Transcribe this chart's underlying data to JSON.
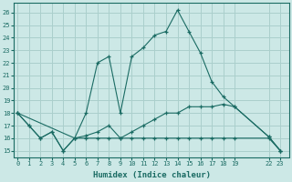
{
  "xlabel": "Humidex (Indice chaleur)",
  "bg_color": "#cce8e6",
  "grid_color": "#aacfcc",
  "line_color": "#1a6b63",
  "series": [
    {
      "x": [
        0,
        5,
        6,
        7,
        8,
        9,
        10,
        11,
        12,
        13,
        14,
        15,
        16,
        17,
        18,
        19,
        22,
        23
      ],
      "y": [
        18,
        16,
        18,
        22,
        22.5,
        18,
        22.5,
        23.2,
        24.2,
        24.5,
        26.2,
        24.5,
        22.8,
        20.5,
        19.3,
        18.5,
        16.1,
        15
      ]
    },
    {
      "x": [
        0,
        1,
        2,
        3,
        4,
        5,
        6,
        7,
        8,
        9,
        10,
        11,
        12,
        13,
        14,
        15,
        16,
        17,
        18,
        19,
        22,
        23
      ],
      "y": [
        18,
        17,
        16,
        16.5,
        15,
        16,
        16.2,
        16.5,
        17.0,
        16,
        16.5,
        17.0,
        17.5,
        18.0,
        18.0,
        18.5,
        18.5,
        18.5,
        18.7,
        18.5,
        16.1,
        15
      ]
    },
    {
      "x": [
        0,
        1,
        2,
        3,
        4,
        5,
        6,
        7,
        8,
        9,
        10,
        11,
        12,
        13,
        14,
        15,
        16,
        17,
        18,
        19,
        22,
        23
      ],
      "y": [
        18,
        17,
        16,
        16.5,
        15,
        16,
        16,
        16,
        16,
        16,
        16,
        16,
        16,
        16,
        16,
        16,
        16,
        16,
        16,
        16,
        16,
        15
      ]
    }
  ],
  "xticks": [
    0,
    1,
    2,
    3,
    4,
    5,
    6,
    7,
    8,
    9,
    10,
    11,
    12,
    13,
    14,
    15,
    16,
    17,
    18,
    19,
    22,
    23
  ],
  "yticks": [
    15,
    16,
    17,
    18,
    19,
    20,
    21,
    22,
    23,
    24,
    25,
    26
  ],
  "ylim": [
    14.5,
    26.8
  ],
  "xlim": [
    -0.3,
    23.8
  ]
}
